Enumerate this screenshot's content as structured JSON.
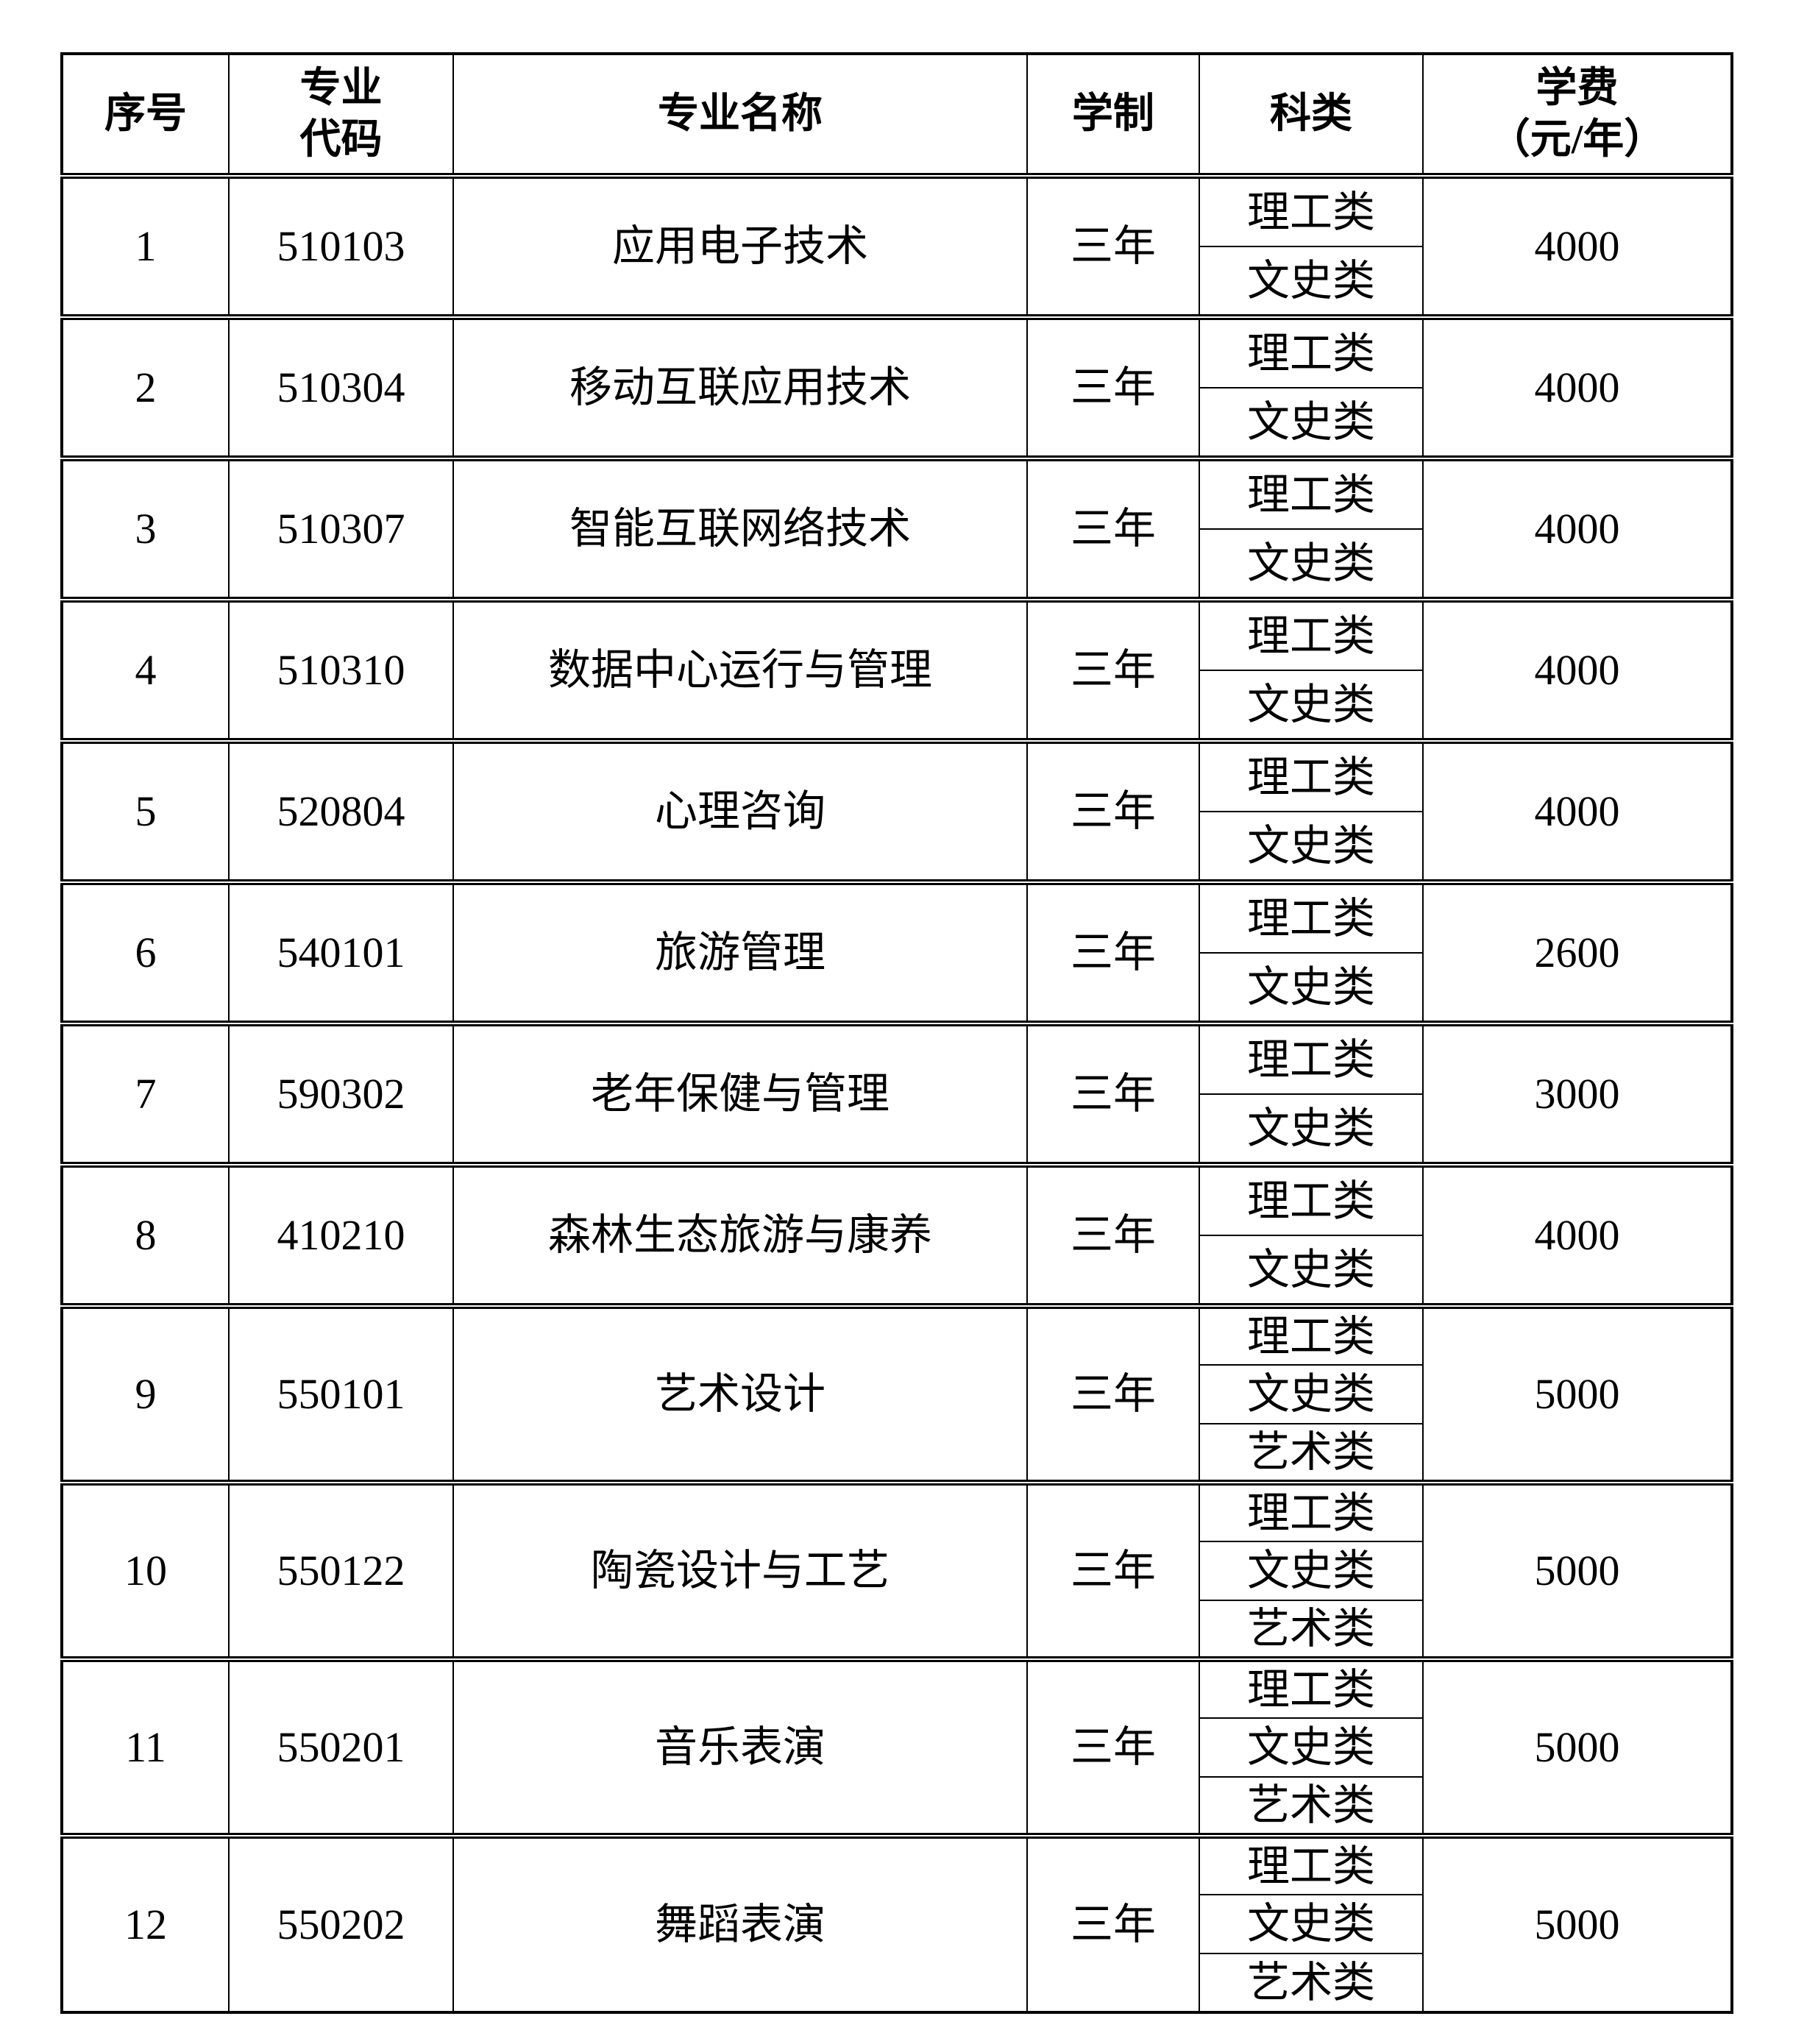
{
  "colors": {
    "background": "#ffffff",
    "border": "#000000",
    "text": "#000000"
  },
  "table": {
    "headers": {
      "index": "序号",
      "code_line1": "专业",
      "code_line2": "代码",
      "name": "专业名称",
      "duration": "学制",
      "category": "科类",
      "fee_line1": "学费",
      "fee_line2": "（元/年）"
    },
    "rows": [
      {
        "no": "1",
        "code": "510103",
        "name": "应用电子技术",
        "duration": "三年",
        "categories": [
          "理工类",
          "文史类"
        ],
        "fee": "4000"
      },
      {
        "no": "2",
        "code": "510304",
        "name": "移动互联应用技术",
        "duration": "三年",
        "categories": [
          "理工类",
          "文史类"
        ],
        "fee": "4000"
      },
      {
        "no": "3",
        "code": "510307",
        "name": "智能互联网络技术",
        "duration": "三年",
        "categories": [
          "理工类",
          "文史类"
        ],
        "fee": "4000"
      },
      {
        "no": "4",
        "code": "510310",
        "name": "数据中心运行与管理",
        "duration": "三年",
        "categories": [
          "理工类",
          "文史类"
        ],
        "fee": "4000"
      },
      {
        "no": "5",
        "code": "520804",
        "name": "心理咨询",
        "duration": "三年",
        "categories": [
          "理工类",
          "文史类"
        ],
        "fee": "4000"
      },
      {
        "no": "6",
        "code": "540101",
        "name": "旅游管理",
        "duration": "三年",
        "categories": [
          "理工类",
          "文史类"
        ],
        "fee": "2600"
      },
      {
        "no": "7",
        "code": "590302",
        "name": "老年保健与管理",
        "duration": "三年",
        "categories": [
          "理工类",
          "文史类"
        ],
        "fee": "3000"
      },
      {
        "no": "8",
        "code": "410210",
        "name": "森林生态旅游与康养",
        "duration": "三年",
        "categories": [
          "理工类",
          "文史类"
        ],
        "fee": "4000"
      },
      {
        "no": "9",
        "code": "550101",
        "name": "艺术设计",
        "duration": "三年",
        "categories": [
          "理工类",
          "文史类",
          "艺术类"
        ],
        "fee": "5000"
      },
      {
        "no": "10",
        "code": "550122",
        "name": "陶瓷设计与工艺",
        "duration": "三年",
        "categories": [
          "理工类",
          "文史类",
          "艺术类"
        ],
        "fee": "5000"
      },
      {
        "no": "11",
        "code": "550201",
        "name": "音乐表演",
        "duration": "三年",
        "categories": [
          "理工类",
          "文史类",
          "艺术类"
        ],
        "fee": "5000"
      },
      {
        "no": "12",
        "code": "550202",
        "name": "舞蹈表演",
        "duration": "三年",
        "categories": [
          "理工类",
          "文史类",
          "艺术类"
        ],
        "fee": "5000"
      }
    ]
  }
}
